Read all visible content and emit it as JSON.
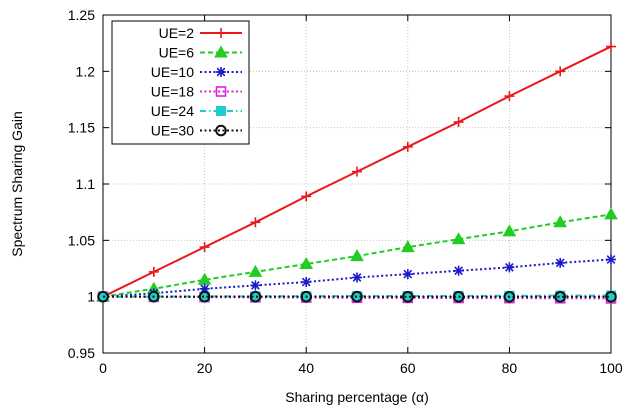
{
  "chart_data": {
    "type": "line",
    "title": "",
    "xlabel": "Sharing percentage (α)",
    "ylabel": "Spectrum Sharing Gain",
    "xlim": [
      0,
      100
    ],
    "ylim": [
      0.95,
      1.25
    ],
    "xticks": [
      "0",
      "20",
      "40",
      "60",
      "80",
      "100"
    ],
    "yticks": [
      "0.95",
      "1",
      "1.05",
      "1.1",
      "1.15",
      "1.2",
      "1.25"
    ],
    "grid": true,
    "legend_position": "top-left",
    "x": [
      0,
      10,
      20,
      30,
      40,
      50,
      60,
      70,
      80,
      90,
      100
    ],
    "series": [
      {
        "name": "UE=2",
        "color": "#e8191b",
        "marker": "plus",
        "dash": "solid",
        "values": [
          1.0,
          1.022,
          1.044,
          1.066,
          1.089,
          1.111,
          1.133,
          1.155,
          1.178,
          1.2,
          1.222
        ]
      },
      {
        "name": "UE=6",
        "color": "#22cc22",
        "marker": "triangle",
        "dash": "dashed",
        "values": [
          1.0,
          1.007,
          1.015,
          1.022,
          1.029,
          1.036,
          1.044,
          1.051,
          1.058,
          1.066,
          1.073
        ]
      },
      {
        "name": "UE=10",
        "color": "#1a1acc",
        "marker": "star",
        "dash": "dotted",
        "values": [
          1.0,
          1.003,
          1.007,
          1.01,
          1.013,
          1.017,
          1.02,
          1.023,
          1.026,
          1.03,
          1.033
        ]
      },
      {
        "name": "UE=18",
        "color": "#dd22dd",
        "marker": "square-open",
        "dash": "dotted",
        "values": [
          1.0,
          0.9998,
          0.9996,
          0.9994,
          0.9992,
          0.999,
          0.9989,
          0.9988,
          0.9987,
          0.9986,
          0.9985
        ]
      },
      {
        "name": "UE=24",
        "color": "#22cccc",
        "marker": "square-filled",
        "dash": "dashdot",
        "values": [
          1.0,
          1.0001,
          1.0002,
          1.0003,
          1.0004,
          1.0005,
          1.0006,
          1.0007,
          1.0008,
          1.0009,
          1.001
        ]
      },
      {
        "name": "UE=30",
        "color": "#111111",
        "marker": "circle-open",
        "dash": "dotted",
        "values": [
          1.0,
          1.0,
          1.0,
          1.0,
          1.0,
          1.0,
          0.9999,
          0.9999,
          0.9999,
          0.9999,
          0.9999
        ]
      }
    ]
  }
}
